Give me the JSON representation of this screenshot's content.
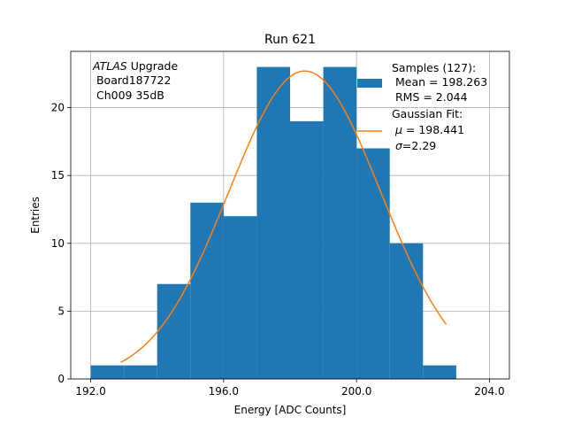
{
  "chart_data": {
    "type": "bar",
    "title": "Run 621",
    "xlabel": "Energy [ADC Counts]",
    "ylabel": "Entries",
    "xlim": [
      191.4,
      204.6
    ],
    "ylim": [
      0,
      24.15
    ],
    "grid": true,
    "xticks": [
      192,
      196,
      200,
      204
    ],
    "xtick_labels": [
      "192.0",
      "196.0",
      "200.0",
      "204.0"
    ],
    "yticks": [
      0,
      5,
      10,
      15,
      20
    ],
    "ytick_labels": [
      "0",
      "5",
      "10",
      "15",
      "20"
    ],
    "bins": [
      {
        "x0": 192,
        "x1": 193,
        "value": 1
      },
      {
        "x0": 193,
        "x1": 194,
        "value": 1
      },
      {
        "x0": 194,
        "x1": 195,
        "value": 7
      },
      {
        "x0": 195,
        "x1": 196,
        "value": 13
      },
      {
        "x0": 196,
        "x1": 197,
        "value": 12
      },
      {
        "x0": 197,
        "x1": 198,
        "value": 23
      },
      {
        "x0": 198,
        "x1": 199,
        "value": 19
      },
      {
        "x0": 199,
        "x1": 200,
        "value": 23
      },
      {
        "x0": 200,
        "x1": 201,
        "value": 17
      },
      {
        "x0": 201,
        "x1": 202,
        "value": 10
      },
      {
        "x0": 202,
        "x1": 203,
        "value": 1
      }
    ],
    "fit": {
      "type": "gaussian",
      "mu": 198.441,
      "sigma": 2.29,
      "amplitude": 22.7,
      "x_range": [
        192.9,
        202.7
      ]
    },
    "colors": {
      "bars": "#1f77b4",
      "fit": "#ff7f0e",
      "grid": "#b0b0b0"
    },
    "annotation": {
      "line1_italic": "ATLAS",
      "line1_rest": " Upgrade",
      "line2": " Board187722",
      "line3": " Ch009 35dB"
    },
    "legend": {
      "placement": "top-right",
      "samples": {
        "line1": "Samples (127):",
        "line2": " Mean = 198.263",
        "line3": " RMS = 2.044"
      },
      "fit": {
        "line1": "Gaussian Fit:",
        "line2_sym": "μ",
        "line2_rest": " = 198.441",
        "line3_sym": "σ",
        "line3_rest": "=2.29"
      }
    }
  }
}
